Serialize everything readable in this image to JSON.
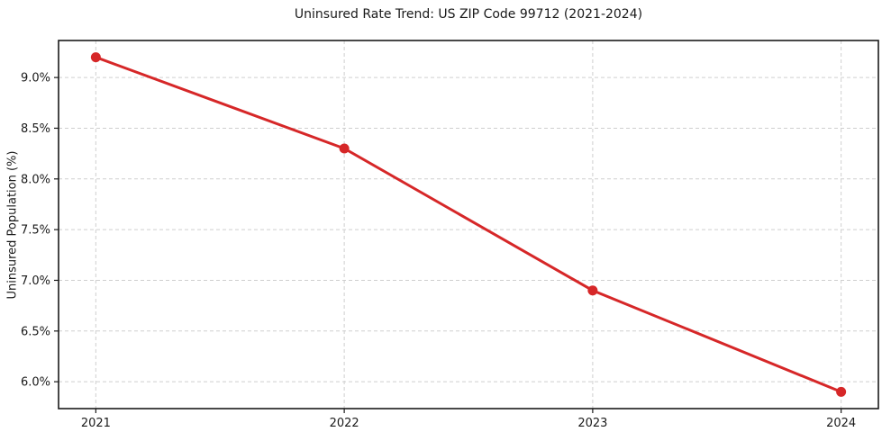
{
  "figure": {
    "background": "#ffffff"
  },
  "chart_data": {
    "type": "line",
    "title": "Uninsured Rate Trend: US ZIP Code 99712 (2021-2024)",
    "xlabel": "",
    "ylabel": "Uninsured Population (%)",
    "x": [
      2021,
      2022,
      2023,
      2024
    ],
    "values": [
      9.2,
      8.3,
      6.9,
      5.9
    ],
    "x_tick_labels": [
      "2021",
      "2022",
      "2023",
      "2024"
    ],
    "y_ticks": [
      6.0,
      6.5,
      7.0,
      7.5,
      8.0,
      8.5,
      9.0
    ],
    "y_tick_labels": [
      "6.0%",
      "6.5%",
      "7.0%",
      "7.5%",
      "8.0%",
      "8.5%",
      "9.0%"
    ],
    "xlim": [
      2020.85,
      2024.15
    ],
    "ylim": [
      5.735,
      9.365
    ],
    "grid": true,
    "grid_style": "dashed",
    "legend": "none",
    "line_color": "#d62728",
    "marker": "circle",
    "grid_color": "#cfcfcf",
    "spine_color": "#1a1a1a",
    "text_color": "#1a1a1a"
  }
}
